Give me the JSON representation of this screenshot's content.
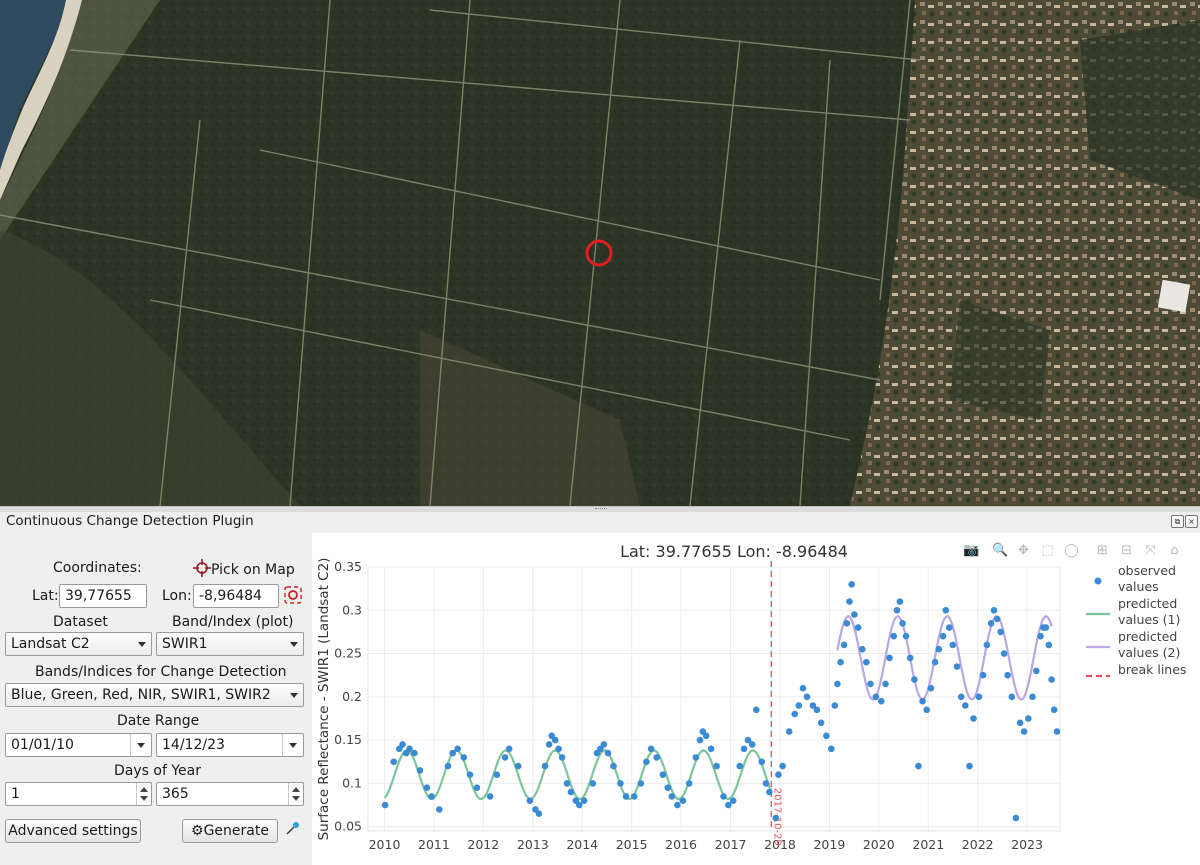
{
  "plugin_title": "Continuous Change Detection Plugin",
  "panel": {
    "coordinates_label": "Coordinates:",
    "pick_on_map_label": "Pick on Map",
    "lat_label": "Lat:",
    "lat_value": "39,77655",
    "lon_label": "Lon:",
    "lon_value": "-8,96484",
    "dataset_label": "Dataset",
    "dataset_value": "Landsat C2",
    "band_label": "Band/Index (plot)",
    "band_value": "SWIR1",
    "bands_cd_label": "Bands/Indices for Change Detection",
    "bands_cd_value": "Blue, Green, Red, NIR, SWIR1, SWIR2",
    "date_range_label": "Date Range",
    "start_date": "01/01/10",
    "end_date": "14/12/23",
    "doy_label": "Days of Year",
    "doy_start": "1",
    "doy_end": "365",
    "advanced_label": "Advanced settings",
    "generate_label": "Generate"
  },
  "colors": {
    "observed": "#3a8ad4",
    "predicted_1": "#7cc59a",
    "predicted_2": "#b9a6e4",
    "break": "#e8505b",
    "marker": "#e02020"
  },
  "chart_data": {
    "type": "scatter",
    "title": "Lat: 39.77655 Lon: -8.96484",
    "ylabel": "Surface Reflectance - SWIR1 (Landsat C2)",
    "xlabel": "",
    "x_range": [
      "2009-09-01",
      "2023-09-01"
    ],
    "y_range": [
      0.045,
      0.35
    ],
    "yticks": [
      0.05,
      0.1,
      0.15,
      0.2,
      0.25,
      0.3,
      0.35
    ],
    "xticks": [
      "2010",
      "2011",
      "2012",
      "2013",
      "2014",
      "2015",
      "2016",
      "2017",
      "2018",
      "2019",
      "2020",
      "2021",
      "2022",
      "2023"
    ],
    "grid": true,
    "legend_position": "right",
    "legend": [
      "observed values",
      "predicted values (1)",
      "predicted values (2)",
      "break lines"
    ],
    "break_lines": [
      {
        "date": "2017-10-29",
        "label": "2017-10-29"
      }
    ],
    "predicted": [
      {
        "name": "predicted values (1)",
        "start": "2010-01-01",
        "end": "2017-10-29",
        "mean": 0.11,
        "amplitude": 0.028,
        "peak": "06-15"
      },
      {
        "name": "predicted values (2)",
        "start": "2019-03-01",
        "end": "2023-07-01",
        "mean": 0.245,
        "amplitude": 0.048,
        "peak": "05-20"
      }
    ],
    "observed": [
      [
        "2010-01-05",
        0.075
      ],
      [
        "2010-03-10",
        0.125
      ],
      [
        "2010-04-20",
        0.14
      ],
      [
        "2010-05-15",
        0.145
      ],
      [
        "2010-06-10",
        0.135
      ],
      [
        "2010-07-05",
        0.14
      ],
      [
        "2010-08-10",
        0.135
      ],
      [
        "2010-09-20",
        0.115
      ],
      [
        "2010-11-10",
        0.095
      ],
      [
        "2010-12-15",
        0.085
      ],
      [
        "2011-02-10",
        0.07
      ],
      [
        "2011-04-15",
        0.12
      ],
      [
        "2011-05-20",
        0.135
      ],
      [
        "2011-06-25",
        0.14
      ],
      [
        "2011-08-10",
        0.13
      ],
      [
        "2011-09-25",
        0.11
      ],
      [
        "2011-11-15",
        0.095
      ],
      [
        "2012-02-20",
        0.085
      ],
      [
        "2012-04-10",
        0.11
      ],
      [
        "2012-06-10",
        0.13
      ],
      [
        "2012-07-10",
        0.14
      ],
      [
        "2012-09-15",
        0.12
      ],
      [
        "2012-12-10",
        0.08
      ],
      [
        "2013-01-20",
        0.07
      ],
      [
        "2013-02-15",
        0.065
      ],
      [
        "2013-04-01",
        0.12
      ],
      [
        "2013-05-01",
        0.145
      ],
      [
        "2013-05-20",
        0.155
      ],
      [
        "2013-06-15",
        0.15
      ],
      [
        "2013-07-10",
        0.14
      ],
      [
        "2013-08-05",
        0.13
      ],
      [
        "2013-09-10",
        0.1
      ],
      [
        "2013-10-10",
        0.09
      ],
      [
        "2013-11-15",
        0.08
      ],
      [
        "2013-12-10",
        0.075
      ],
      [
        "2014-01-15",
        0.08
      ],
      [
        "2014-03-20",
        0.1
      ],
      [
        "2014-04-20",
        0.135
      ],
      [
        "2014-05-15",
        0.14
      ],
      [
        "2014-06-10",
        0.145
      ],
      [
        "2014-07-10",
        0.135
      ],
      [
        "2014-08-20",
        0.12
      ],
      [
        "2014-10-10",
        0.1
      ],
      [
        "2014-11-20",
        0.085
      ],
      [
        "2015-01-20",
        0.085
      ],
      [
        "2015-03-10",
        0.1
      ],
      [
        "2015-04-20",
        0.125
      ],
      [
        "2015-05-25",
        0.14
      ],
      [
        "2015-07-05",
        0.13
      ],
      [
        "2015-08-20",
        0.11
      ],
      [
        "2015-09-25",
        0.095
      ],
      [
        "2015-10-25",
        0.085
      ],
      [
        "2015-12-05",
        0.075
      ],
      [
        "2016-01-15",
        0.08
      ],
      [
        "2016-03-01",
        0.1
      ],
      [
        "2016-04-20",
        0.13
      ],
      [
        "2016-05-20",
        0.15
      ],
      [
        "2016-06-10",
        0.16
      ],
      [
        "2016-07-05",
        0.155
      ],
      [
        "2016-08-10",
        0.14
      ],
      [
        "2016-09-20",
        0.12
      ],
      [
        "2016-11-10",
        0.085
      ],
      [
        "2016-12-15",
        0.075
      ],
      [
        "2017-01-20",
        0.08
      ],
      [
        "2017-03-10",
        0.12
      ],
      [
        "2017-04-10",
        0.14
      ],
      [
        "2017-05-10",
        0.15
      ],
      [
        "2017-06-10",
        0.145
      ],
      [
        "2017-07-10",
        0.185
      ],
      [
        "2017-08-20",
        0.125
      ],
      [
        "2017-09-20",
        0.1
      ],
      [
        "2017-10-15",
        0.09
      ],
      [
        "2017-12-01",
        0.06
      ],
      [
        "2017-12-20",
        0.11
      ],
      [
        "2018-01-20",
        0.12
      ],
      [
        "2018-03-10",
        0.16
      ],
      [
        "2018-04-20",
        0.18
      ],
      [
        "2018-05-20",
        0.19
      ],
      [
        "2018-06-20",
        0.21
      ],
      [
        "2018-07-20",
        0.2
      ],
      [
        "2018-09-01",
        0.19
      ],
      [
        "2018-10-01",
        0.185
      ],
      [
        "2018-11-01",
        0.17
      ],
      [
        "2018-12-10",
        0.155
      ],
      [
        "2019-01-15",
        0.14
      ],
      [
        "2019-02-10",
        0.19
      ],
      [
        "2019-03-01",
        0.215
      ],
      [
        "2019-03-25",
        0.24
      ],
      [
        "2019-04-20",
        0.26
      ],
      [
        "2019-05-10",
        0.285
      ],
      [
        "2019-05-30",
        0.31
      ],
      [
        "2019-06-15",
        0.33
      ],
      [
        "2019-07-05",
        0.295
      ],
      [
        "2019-08-01",
        0.28
      ],
      [
        "2019-09-01",
        0.255
      ],
      [
        "2019-10-01",
        0.24
      ],
      [
        "2019-11-01",
        0.215
      ],
      [
        "2019-12-10",
        0.2
      ],
      [
        "2020-01-20",
        0.195
      ],
      [
        "2020-02-20",
        0.215
      ],
      [
        "2020-03-20",
        0.245
      ],
      [
        "2020-04-20",
        0.27
      ],
      [
        "2020-05-15",
        0.3
      ],
      [
        "2020-06-05",
        0.31
      ],
      [
        "2020-06-25",
        0.285
      ],
      [
        "2020-07-20",
        0.27
      ],
      [
        "2020-08-20",
        0.245
      ],
      [
        "2020-09-20",
        0.22
      ],
      [
        "2020-10-20",
        0.12
      ],
      [
        "2020-11-20",
        0.195
      ],
      [
        "2020-12-20",
        0.185
      ],
      [
        "2021-01-20",
        0.21
      ],
      [
        "2021-02-20",
        0.24
      ],
      [
        "2021-03-20",
        0.255
      ],
      [
        "2021-04-20",
        0.27
      ],
      [
        "2021-05-10",
        0.3
      ],
      [
        "2021-06-05",
        0.28
      ],
      [
        "2021-07-01",
        0.26
      ],
      [
        "2021-08-01",
        0.235
      ],
      [
        "2021-09-01",
        0.2
      ],
      [
        "2021-10-01",
        0.19
      ],
      [
        "2021-11-01",
        0.12
      ],
      [
        "2021-12-01",
        0.175
      ],
      [
        "2022-01-10",
        0.2
      ],
      [
        "2022-02-10",
        0.225
      ],
      [
        "2022-03-10",
        0.26
      ],
      [
        "2022-04-10",
        0.285
      ],
      [
        "2022-05-01",
        0.3
      ],
      [
        "2022-05-25",
        0.29
      ],
      [
        "2022-06-20",
        0.275
      ],
      [
        "2022-07-15",
        0.25
      ],
      [
        "2022-08-10",
        0.225
      ],
      [
        "2022-09-10",
        0.2
      ],
      [
        "2022-10-10",
        0.06
      ],
      [
        "2022-11-10",
        0.17
      ],
      [
        "2022-12-10",
        0.16
      ],
      [
        "2023-01-10",
        0.175
      ],
      [
        "2023-02-10",
        0.2
      ],
      [
        "2023-03-10",
        0.23
      ],
      [
        "2023-04-10",
        0.27
      ],
      [
        "2023-05-01",
        0.28
      ],
      [
        "2023-05-20",
        0.28
      ],
      [
        "2023-06-10",
        0.26
      ],
      [
        "2023-07-01",
        0.22
      ],
      [
        "2023-07-20",
        0.185
      ],
      [
        "2023-08-10",
        0.16
      ]
    ]
  }
}
